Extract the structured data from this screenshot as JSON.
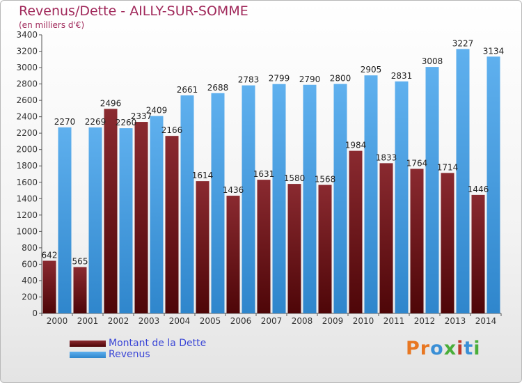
{
  "header": {
    "title": "Revenus/Dette - AILLY-SUR-SOMME",
    "subtitle": "(en milliers d'€)"
  },
  "legend": {
    "position": "bottom-left",
    "items": [
      {
        "label": "Montant de la Dette",
        "color": "#6b1418"
      },
      {
        "label": "Revenus",
        "color": "#4aa0e2"
      }
    ]
  },
  "brand": {
    "text": "Proxiti",
    "colors": [
      "#e87722",
      "#e87722",
      "#3a8fd6",
      "#4aae3a",
      "#c0392b",
      "#3a8fd6",
      "#4aae3a"
    ]
  },
  "chart_data": {
    "type": "bar",
    "title": "Revenus/Dette - AILLY-SUR-SOMME",
    "subtitle": "(en milliers d'€)",
    "xlabel": "",
    "ylabel": "",
    "ylim": [
      0,
      3400
    ],
    "ytick_step": 200,
    "grid": false,
    "categories": [
      "2000",
      "2001",
      "2002",
      "2003",
      "2004",
      "2005",
      "2006",
      "2007",
      "2008",
      "2009",
      "2010",
      "2011",
      "2012",
      "2013",
      "2014"
    ],
    "series": [
      {
        "name": "Montant de la Dette",
        "color": "#6b1418",
        "values": [
          642,
          565,
          2496,
          2337,
          2166,
          1614,
          1436,
          1631,
          1580,
          1568,
          1984,
          1833,
          1764,
          1714,
          1446
        ],
        "labels": [
          "642",
          "565",
          "2496",
          "2337",
          "2166",
          "1614",
          "1436",
          "1631",
          "1580",
          "1568",
          "1984",
          "1833",
          "1764",
          "1714",
          "1446"
        ]
      },
      {
        "name": "Revenus",
        "color": "#4aa0e2",
        "values": [
          2270,
          2269,
          2260,
          2409,
          2661,
          2688,
          2783,
          2799,
          2790,
          2800,
          2905,
          2831,
          3008,
          3227,
          3134
        ],
        "labels": [
          "2270",
          "2269",
          "2260",
          "2409",
          "2661",
          "2688",
          "2783",
          "2799",
          "2790",
          "2800",
          "2905",
          "2831",
          "3008",
          "3227",
          "3134"
        ]
      }
    ]
  }
}
